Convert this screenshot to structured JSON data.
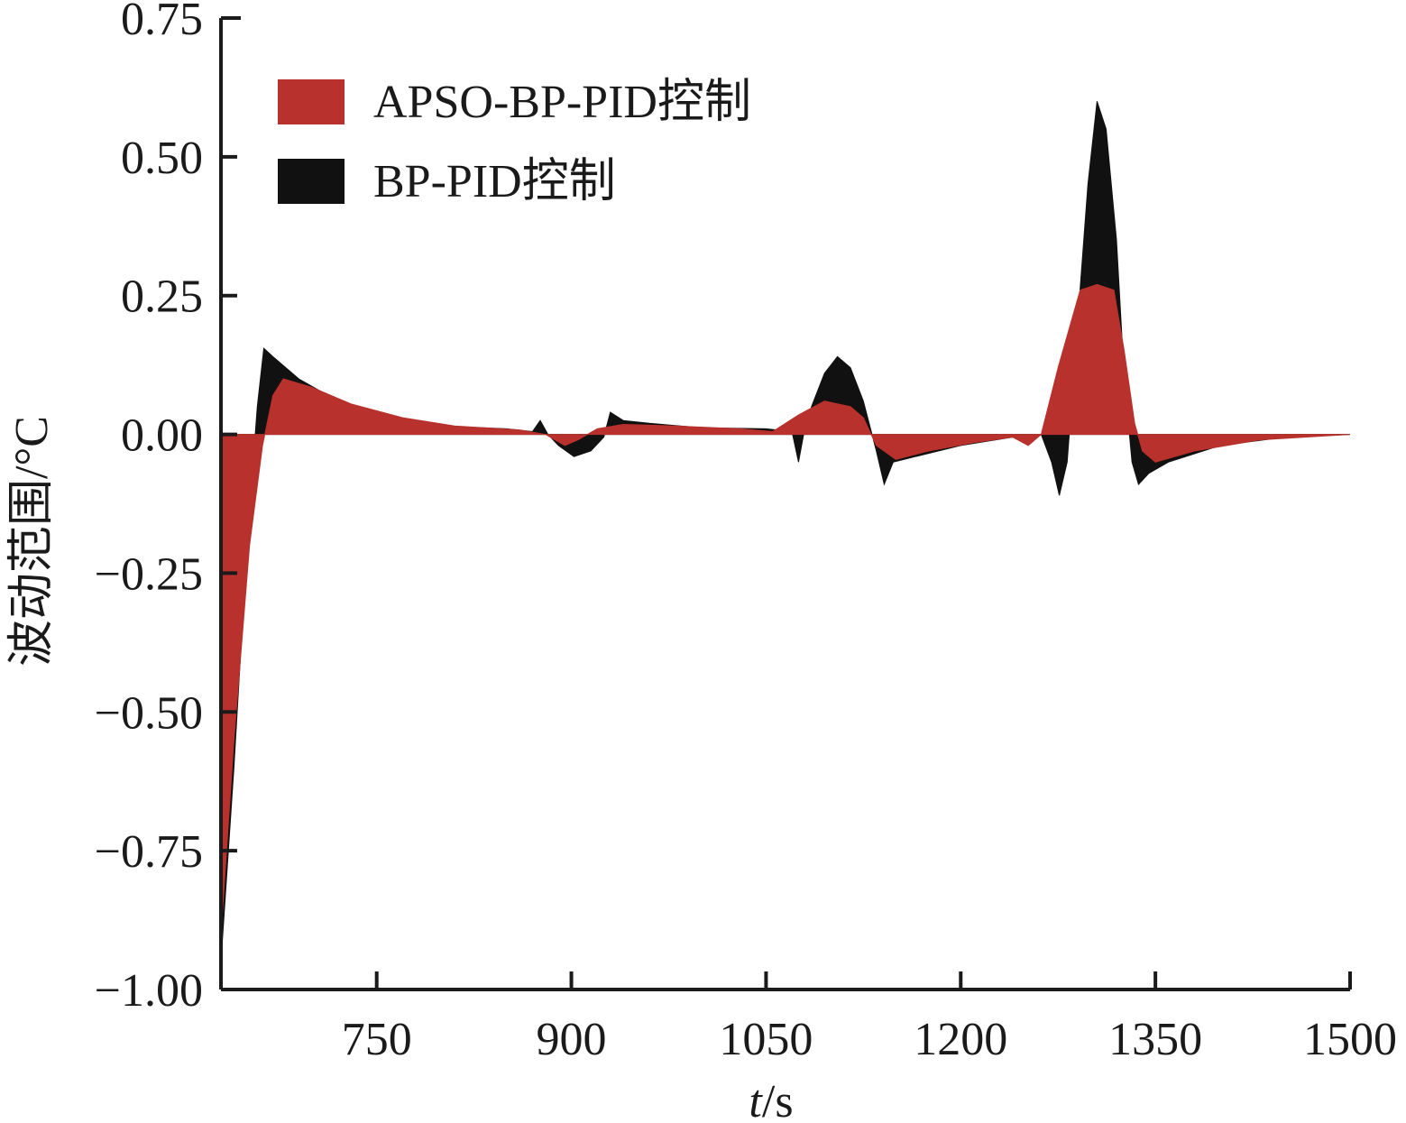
{
  "chart_data": {
    "type": "area",
    "title": "",
    "xlabel_italic": "t",
    "xlabel_unit": "/s",
    "ylabel": "波动范围/°C",
    "xlim": [
      630,
      1500
    ],
    "ylim": [
      -1.0,
      0.75
    ],
    "x_ticks": [
      750,
      900,
      1050,
      1200,
      1350,
      1500
    ],
    "y_ticks": [
      0.75,
      0.5,
      0.25,
      0.0,
      -0.25,
      -0.5,
      -0.75,
      -1.0
    ],
    "y_tick_labels": [
      "0.75",
      "0.50",
      "0.25",
      "0.00",
      "−0.25",
      "−0.50",
      "−0.75",
      "−1.00"
    ],
    "x_tick_labels": [
      "750",
      "900",
      "1050",
      "1200",
      "1350",
      "1500"
    ],
    "legend_position": "top-left",
    "series": [
      {
        "name": "BP-PID控制",
        "color": "#111111",
        "points": [
          [
            630,
            -0.95
          ],
          [
            640,
            -0.6
          ],
          [
            650,
            -0.2
          ],
          [
            658,
            0.05
          ],
          [
            663,
            0.155
          ],
          [
            670,
            0.14
          ],
          [
            690,
            0.1
          ],
          [
            720,
            0.06
          ],
          [
            760,
            0.03
          ],
          [
            800,
            0.015
          ],
          [
            850,
            0.01
          ],
          [
            870,
            0.005
          ],
          [
            876,
            0.025
          ],
          [
            882,
            0.0
          ],
          [
            890,
            -0.02
          ],
          [
            902,
            -0.04
          ],
          [
            915,
            -0.03
          ],
          [
            925,
            -0.005
          ],
          [
            930,
            0.04
          ],
          [
            940,
            0.025
          ],
          [
            960,
            0.02
          ],
          [
            1000,
            0.012
          ],
          [
            1050,
            0.01
          ],
          [
            1070,
            0.005
          ],
          [
            1075,
            -0.05
          ],
          [
            1079,
            0.0
          ],
          [
            1085,
            0.05
          ],
          [
            1095,
            0.11
          ],
          [
            1105,
            0.14
          ],
          [
            1115,
            0.12
          ],
          [
            1125,
            0.06
          ],
          [
            1135,
            -0.03
          ],
          [
            1141,
            -0.09
          ],
          [
            1148,
            -0.05
          ],
          [
            1165,
            -0.04
          ],
          [
            1200,
            -0.02
          ],
          [
            1240,
            -0.005
          ],
          [
            1255,
            -0.01
          ],
          [
            1262,
            0.0
          ],
          [
            1270,
            -0.05
          ],
          [
            1276,
            -0.11
          ],
          [
            1282,
            -0.05
          ],
          [
            1290,
            0.2
          ],
          [
            1298,
            0.45
          ],
          [
            1305,
            0.6
          ],
          [
            1312,
            0.55
          ],
          [
            1320,
            0.35
          ],
          [
            1326,
            0.1
          ],
          [
            1332,
            -0.05
          ],
          [
            1337,
            -0.09
          ],
          [
            1345,
            -0.07
          ],
          [
            1360,
            -0.05
          ],
          [
            1400,
            -0.02
          ],
          [
            1450,
            -0.005
          ],
          [
            1500,
            0.0
          ]
        ]
      },
      {
        "name": "APSO-BP-PID控制",
        "color": "#b8312c",
        "points": [
          [
            630,
            -0.9
          ],
          [
            640,
            -0.55
          ],
          [
            652,
            -0.2
          ],
          [
            662,
            -0.02
          ],
          [
            670,
            0.07
          ],
          [
            678,
            0.1
          ],
          [
            700,
            0.085
          ],
          [
            730,
            0.055
          ],
          [
            770,
            0.03
          ],
          [
            810,
            0.015
          ],
          [
            860,
            0.008
          ],
          [
            880,
            0.0
          ],
          [
            895,
            -0.02
          ],
          [
            905,
            -0.01
          ],
          [
            920,
            0.01
          ],
          [
            940,
            0.018
          ],
          [
            980,
            0.015
          ],
          [
            1030,
            0.01
          ],
          [
            1055,
            0.005
          ],
          [
            1075,
            0.035
          ],
          [
            1095,
            0.06
          ],
          [
            1115,
            0.05
          ],
          [
            1125,
            0.03
          ],
          [
            1135,
            -0.02
          ],
          [
            1150,
            -0.045
          ],
          [
            1175,
            -0.03
          ],
          [
            1210,
            -0.015
          ],
          [
            1240,
            -0.005
          ],
          [
            1252,
            -0.02
          ],
          [
            1262,
            0.0
          ],
          [
            1275,
            0.12
          ],
          [
            1292,
            0.26
          ],
          [
            1305,
            0.27
          ],
          [
            1318,
            0.26
          ],
          [
            1326,
            0.15
          ],
          [
            1334,
            0.02
          ],
          [
            1340,
            -0.03
          ],
          [
            1350,
            -0.05
          ],
          [
            1380,
            -0.03
          ],
          [
            1430,
            -0.01
          ],
          [
            1500,
            0.0
          ]
        ]
      }
    ]
  }
}
